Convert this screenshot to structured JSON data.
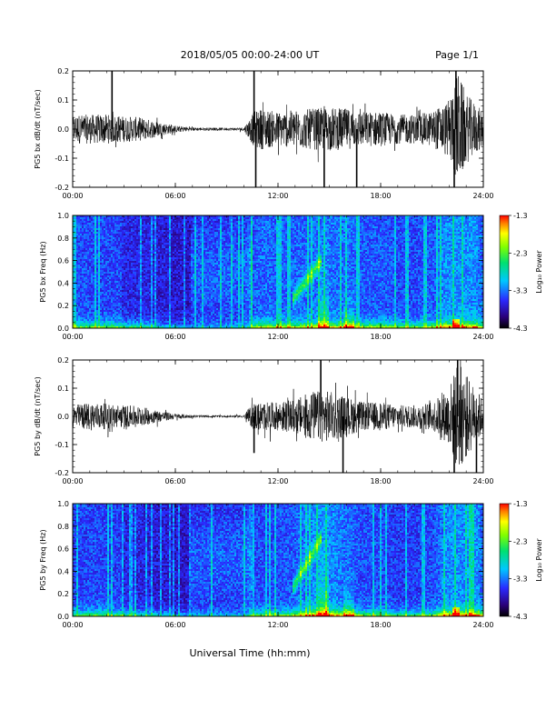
{
  "header": {
    "title": "2018/05/05  00:00-24:00 UT",
    "page": "Page 1/1"
  },
  "footer": {
    "xlabel": "Universal Time (hh:mm)"
  },
  "colorbar": {
    "label": "Log₁₀ Power",
    "ticks": [
      "-1.3",
      "-2.3",
      "-3.3",
      "-4.3"
    ],
    "range": [
      -4.3,
      -1.3
    ]
  },
  "chart_data": [
    {
      "type": "line",
      "ylabel": "PG5 bx dB/dt (nT/sec)",
      "xlim": [
        "00:00",
        "24:00"
      ],
      "ylim": [
        -0.2,
        0.2
      ],
      "ytick_labels": [
        "0.2",
        "0.1",
        "0.0",
        "-0.1",
        "-0.2"
      ],
      "xtick_labels": [
        "00:00",
        "06:00",
        "12:00",
        "18:00",
        "24:00"
      ],
      "envelope": {
        "x_hours": [
          0,
          1,
          2,
          3,
          4,
          5,
          6,
          7,
          8,
          9,
          10,
          10.6,
          11,
          12,
          13,
          14,
          15,
          16,
          17,
          18,
          19,
          20,
          21,
          22,
          22.5,
          23,
          24
        ],
        "amplitude": [
          0.05,
          0.05,
          0.05,
          0.045,
          0.04,
          0.025,
          0.012,
          0.006,
          0.005,
          0.005,
          0.006,
          0.06,
          0.07,
          0.06,
          0.065,
          0.07,
          0.075,
          0.07,
          0.06,
          0.06,
          0.05,
          0.05,
          0.06,
          0.1,
          0.2,
          0.12,
          0.06
        ]
      },
      "spikes": [
        {
          "x_hours": 2.3,
          "y": 0.2
        },
        {
          "x_hours": 10.6,
          "y": 0.2
        },
        {
          "x_hours": 10.7,
          "y": -0.2
        },
        {
          "x_hours": 14.7,
          "y": -0.2
        },
        {
          "x_hours": 16.6,
          "y": -0.2
        },
        {
          "x_hours": 22.3,
          "y": -0.2
        },
        {
          "x_hours": 22.4,
          "y": 0.2
        }
      ]
    },
    {
      "type": "heatmap",
      "ylabel": "PG5 bx Freq (Hz)",
      "xlim": [
        "00:00",
        "24:00"
      ],
      "ylim": [
        0.0,
        1.0
      ],
      "ytick_labels": [
        "1.0",
        "0.8",
        "0.6",
        "0.4",
        "0.2",
        "0.0"
      ],
      "xtick_labels": [
        "00:00",
        "06:00",
        "12:00",
        "18:00",
        "24:00"
      ],
      "zlim": [
        -4.3,
        -1.3
      ]
    },
    {
      "type": "line",
      "ylabel": "PG5 by dB/dt (nT/sec)",
      "xlim": [
        "00:00",
        "24:00"
      ],
      "ylim": [
        -0.2,
        0.2
      ],
      "ytick_labels": [
        "0.2",
        "0.1",
        "0.0",
        "-0.1",
        "-0.2"
      ],
      "xtick_labels": [
        "00:00",
        "06:00",
        "12:00",
        "18:00",
        "24:00"
      ],
      "envelope": {
        "x_hours": [
          0,
          1,
          2,
          3,
          4,
          5,
          6,
          7,
          8,
          9,
          10,
          10.6,
          11,
          12,
          13,
          14,
          15,
          16,
          17,
          18,
          19,
          20,
          21,
          22,
          22.5,
          23,
          24
        ],
        "amplitude": [
          0.04,
          0.05,
          0.045,
          0.04,
          0.035,
          0.02,
          0.01,
          0.005,
          0.004,
          0.004,
          0.005,
          0.05,
          0.05,
          0.05,
          0.06,
          0.09,
          0.09,
          0.07,
          0.05,
          0.05,
          0.04,
          0.04,
          0.05,
          0.1,
          0.2,
          0.15,
          0.06
        ]
      },
      "spikes": [
        {
          "x_hours": 10.6,
          "y": -0.13
        },
        {
          "x_hours": 14.5,
          "y": 0.2
        },
        {
          "x_hours": 15.8,
          "y": -0.2
        },
        {
          "x_hours": 22.3,
          "y": -0.2
        },
        {
          "x_hours": 22.5,
          "y": 0.2
        },
        {
          "x_hours": 23.6,
          "y": -0.2
        }
      ]
    },
    {
      "type": "heatmap",
      "ylabel": "PG5 by Freq (Hz)",
      "xlim": [
        "00:00",
        "24:00"
      ],
      "ylim": [
        0.0,
        1.0
      ],
      "ytick_labels": [
        "1.0",
        "0.8",
        "0.6",
        "0.4",
        "0.2",
        "0.0"
      ],
      "xtick_labels": [
        "00:00",
        "06:00",
        "12:00",
        "18:00",
        "24:00"
      ],
      "zlim": [
        -4.3,
        -1.3
      ]
    }
  ]
}
